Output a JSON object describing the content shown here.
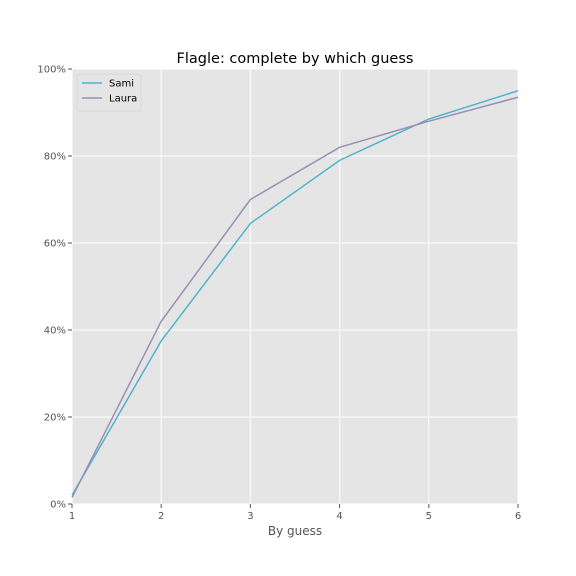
{
  "chart_data": {
    "type": "line",
    "title": "Flagle: complete by which guess",
    "xlabel": "By guess",
    "ylabel": "",
    "x": [
      1,
      2,
      3,
      4,
      5,
      6
    ],
    "xlim": [
      1,
      6
    ],
    "ylim": [
      0,
      1
    ],
    "x_ticks": [
      "1",
      "2",
      "3",
      "4",
      "5",
      "6"
    ],
    "y_ticks": [
      0,
      0.2,
      0.4,
      0.6,
      0.8,
      1.0
    ],
    "y_tick_labels": [
      "0%",
      "20%",
      "40%",
      "60%",
      "80%",
      "100%"
    ],
    "grid": true,
    "legend_position": "top-left",
    "background": "#e5e5e5",
    "series": [
      {
        "name": "Sami",
        "color": "#4fb4cb",
        "values": [
          0.02,
          0.375,
          0.645,
          0.79,
          0.885,
          0.95
        ]
      },
      {
        "name": "Laura",
        "color": "#9a8fb4",
        "values": [
          0.015,
          0.42,
          0.7,
          0.82,
          0.88,
          0.935
        ]
      }
    ]
  }
}
